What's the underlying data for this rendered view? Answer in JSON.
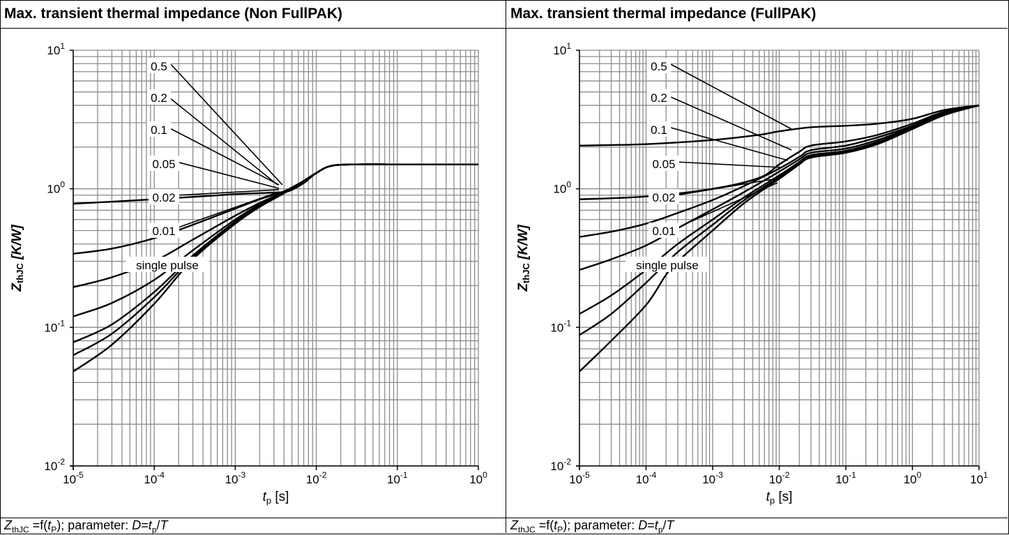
{
  "panels": [
    {
      "title": "Max. transient thermal impedance (Non FullPAK)",
      "caption": {
        "z": "Z",
        "z_sub": "thJC",
        "mid1": " =f(",
        "t": "t",
        "t_sub": "P",
        "mid2": "); parameter: ",
        "d": "D",
        "eq": "=",
        "t2": "t",
        "t2_sub": "p",
        "slash": "/",
        "T": "T"
      }
    },
    {
      "title": "Max. transient thermal impedance (FullPAK)",
      "caption": {
        "z": "Z",
        "z_sub": "thJC",
        "mid1": " =f(",
        "t": "t",
        "t_sub": "P",
        "mid2": "); parameter: ",
        "d": "D",
        "eq": "=",
        "t2": "t",
        "t2_sub": "p",
        "slash": "/",
        "T": "T"
      }
    }
  ],
  "chart_data": [
    {
      "type": "line",
      "title": "Max. transient thermal impedance (Non FullPAK)",
      "xlabel": "tp [s]",
      "ylabel": "ZthJC [K/W]",
      "xscale": "log",
      "yscale": "log",
      "xlim": [
        1e-05,
        1
      ],
      "ylim": [
        0.01,
        10
      ],
      "x_ticks": [
        {
          "b": "10",
          "e": "-5"
        },
        {
          "b": "10",
          "e": "-4"
        },
        {
          "b": "10",
          "e": "-3"
        },
        {
          "b": "10",
          "e": "-2"
        },
        {
          "b": "10",
          "e": "-1"
        },
        {
          "b": "10",
          "e": "0"
        }
      ],
      "y_ticks": [
        {
          "b": "10",
          "e": "-2"
        },
        {
          "b": "10",
          "e": "-1"
        },
        {
          "b": "10",
          "e": "0"
        },
        {
          "b": "10",
          "e": "1"
        }
      ],
      "grid": true,
      "series": [
        {
          "name": "0.5",
          "x": [
            1e-05,
            0.0001,
            0.0005,
            0.001,
            0.002,
            0.003,
            0.0045,
            0.007,
            0.01,
            0.015,
            0.03,
            0.1,
            1
          ],
          "y": [
            0.78,
            0.84,
            0.89,
            0.915,
            0.93,
            0.94,
            0.96,
            1.1,
            1.3,
            1.46,
            1.5,
            1.5,
            1.5
          ]
        },
        {
          "name": "0.2",
          "x": [
            1e-05,
            3e-05,
            0.0001,
            0.0003,
            0.001,
            0.002,
            0.004,
            0.007,
            0.01,
            0.015,
            0.03,
            0.1,
            1
          ],
          "y": [
            0.34,
            0.37,
            0.44,
            0.55,
            0.72,
            0.84,
            0.96,
            1.14,
            1.3,
            1.46,
            1.5,
            1.5,
            1.5
          ]
        },
        {
          "name": "0.1",
          "x": [
            1e-05,
            3e-05,
            0.0001,
            0.0003,
            0.001,
            0.002,
            0.004,
            0.007,
            0.01,
            0.015,
            0.03,
            0.1,
            1
          ],
          "y": [
            0.195,
            0.23,
            0.3,
            0.43,
            0.64,
            0.79,
            0.95,
            1.14,
            1.3,
            1.46,
            1.5,
            1.5,
            1.5
          ]
        },
        {
          "name": "0.05",
          "x": [
            1e-05,
            3e-05,
            0.0001,
            0.0003,
            0.001,
            0.002,
            0.004,
            0.007,
            0.01,
            0.015,
            0.03,
            0.1,
            1
          ],
          "y": [
            0.12,
            0.15,
            0.22,
            0.36,
            0.6,
            0.77,
            0.94,
            1.14,
            1.3,
            1.46,
            1.5,
            1.5,
            1.5
          ]
        },
        {
          "name": "0.02",
          "x": [
            1e-05,
            3e-05,
            0.0001,
            0.0003,
            0.001,
            0.002,
            0.004,
            0.007,
            0.01,
            0.015,
            0.03,
            0.1,
            1
          ],
          "y": [
            0.078,
            0.105,
            0.18,
            0.33,
            0.58,
            0.76,
            0.94,
            1.14,
            1.3,
            1.46,
            1.5,
            1.5,
            1.5
          ]
        },
        {
          "name": "0.01",
          "x": [
            1e-05,
            3e-05,
            0.0001,
            0.0003,
            0.001,
            0.002,
            0.004,
            0.007,
            0.01,
            0.015,
            0.03,
            0.1,
            1
          ],
          "y": [
            0.063,
            0.09,
            0.165,
            0.32,
            0.57,
            0.75,
            0.93,
            1.14,
            1.3,
            1.46,
            1.5,
            1.5,
            1.5
          ]
        },
        {
          "name": "single pulse",
          "x": [
            1e-05,
            3e-05,
            0.0001,
            0.0003,
            0.001,
            0.002,
            0.004,
            0.007,
            0.01,
            0.015,
            0.03,
            0.1,
            1
          ],
          "y": [
            0.048,
            0.075,
            0.148,
            0.31,
            0.56,
            0.74,
            0.93,
            1.14,
            1.3,
            1.46,
            1.5,
            1.5,
            1.5
          ]
        }
      ],
      "annotations": [
        "0.5",
        "0.2",
        "0.1",
        "0.05",
        "0.02",
        "0.01",
        "single pulse"
      ]
    },
    {
      "type": "line",
      "title": "Max. transient thermal impedance (FullPAK)",
      "xlabel": "tp [s]",
      "ylabel": "ZthJC [K/W]",
      "xscale": "log",
      "yscale": "log",
      "xlim": [
        1e-05,
        10
      ],
      "ylim": [
        0.01,
        10
      ],
      "x_ticks": [
        {
          "b": "10",
          "e": "-5"
        },
        {
          "b": "10",
          "e": "-4"
        },
        {
          "b": "10",
          "e": "-3"
        },
        {
          "b": "10",
          "e": "-2"
        },
        {
          "b": "10",
          "e": "-1"
        },
        {
          "b": "10",
          "e": "0"
        },
        {
          "b": "10",
          "e": "1"
        }
      ],
      "y_ticks": [
        {
          "b": "10",
          "e": "-2"
        },
        {
          "b": "10",
          "e": "-1"
        },
        {
          "b": "10",
          "e": "0"
        },
        {
          "b": "10",
          "e": "1"
        }
      ],
      "grid": true,
      "series": [
        {
          "name": "0.5",
          "x": [
            1e-05,
            0.0001,
            0.001,
            0.005,
            0.01,
            0.03,
            0.1,
            0.3,
            1,
            3,
            10
          ],
          "y": [
            2.05,
            2.1,
            2.25,
            2.45,
            2.6,
            2.78,
            2.85,
            2.95,
            3.2,
            3.7,
            4.0
          ]
        },
        {
          "name": "0.2",
          "x": [
            1e-05,
            0.0001,
            0.001,
            0.005,
            0.01,
            0.02,
            0.03,
            0.1,
            0.3,
            1,
            3,
            10
          ],
          "y": [
            0.84,
            0.88,
            1.0,
            1.2,
            1.5,
            1.85,
            2.05,
            2.2,
            2.45,
            2.95,
            3.6,
            4.0
          ]
        },
        {
          "name": "0.1",
          "x": [
            1e-05,
            3e-05,
            0.0001,
            0.0003,
            0.001,
            0.003,
            0.01,
            0.02,
            0.03,
            0.1,
            0.3,
            1,
            3,
            10
          ],
          "y": [
            0.45,
            0.49,
            0.56,
            0.67,
            0.83,
            1.05,
            1.4,
            1.7,
            1.9,
            2.05,
            2.35,
            2.85,
            3.55,
            4.0
          ]
        },
        {
          "name": "0.05",
          "x": [
            1e-05,
            3e-05,
            0.0001,
            0.0003,
            0.001,
            0.003,
            0.01,
            0.02,
            0.03,
            0.1,
            0.3,
            1,
            3,
            10
          ],
          "y": [
            0.26,
            0.31,
            0.39,
            0.52,
            0.71,
            0.95,
            1.33,
            1.63,
            1.82,
            1.95,
            2.25,
            2.8,
            3.5,
            4.0
          ]
        },
        {
          "name": "0.02",
          "x": [
            1e-05,
            3e-05,
            0.0001,
            0.0003,
            0.001,
            0.003,
            0.01,
            0.02,
            0.03,
            0.1,
            0.3,
            1,
            3,
            10
          ],
          "y": [
            0.125,
            0.17,
            0.26,
            0.4,
            0.6,
            0.87,
            1.25,
            1.56,
            1.75,
            1.88,
            2.18,
            2.75,
            3.45,
            4.0
          ]
        },
        {
          "name": "0.01",
          "x": [
            1e-05,
            3e-05,
            0.0001,
            0.0003,
            0.001,
            0.003,
            0.01,
            0.02,
            0.03,
            0.1,
            0.3,
            1,
            3,
            10
          ],
          "y": [
            0.088,
            0.125,
            0.21,
            0.35,
            0.55,
            0.83,
            1.21,
            1.52,
            1.72,
            1.85,
            2.15,
            2.72,
            3.45,
            4.0
          ]
        },
        {
          "name": "single pulse",
          "x": [
            1e-05,
            3e-05,
            0.0001,
            0.0002,
            0.0003,
            0.001,
            0.003,
            0.01,
            0.02,
            0.03,
            0.1,
            0.3,
            1,
            3,
            10
          ],
          "y": [
            0.048,
            0.08,
            0.145,
            0.24,
            0.3,
            0.5,
            0.79,
            1.18,
            1.5,
            1.68,
            1.82,
            2.1,
            2.7,
            3.4,
            4.0
          ]
        }
      ],
      "annotations": [
        "0.5",
        "0.2",
        "0.1",
        "0.05",
        "0.02",
        "0.01",
        "single pulse"
      ]
    }
  ]
}
